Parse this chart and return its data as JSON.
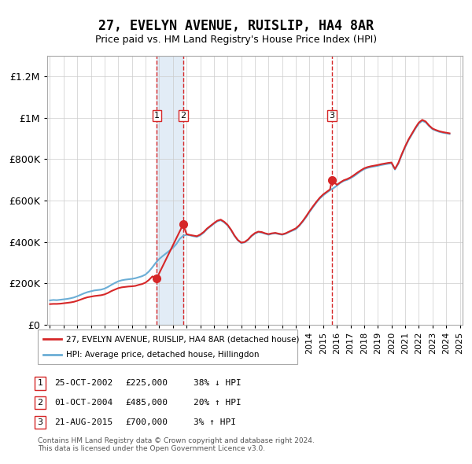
{
  "title": "27, EVELYN AVENUE, RUISLIP, HA4 8AR",
  "subtitle": "Price paid vs. HM Land Registry's House Price Index (HPI)",
  "ylabel": "",
  "ylim": [
    0,
    1300000
  ],
  "yticks": [
    0,
    200000,
    400000,
    600000,
    800000,
    1000000,
    1200000
  ],
  "ytick_labels": [
    "£0",
    "£200K",
    "£400K",
    "£600K",
    "£800K",
    "£1M",
    "£1.2M"
  ],
  "x_start_year": 1995,
  "x_end_year": 2025,
  "hpi_color": "#6baed6",
  "price_color": "#d62728",
  "transaction_color": "#d62728",
  "sale_marker_color": "#d62728",
  "band_color": "#c6dbef",
  "dashed_color": "#d62728",
  "background_color": "#ffffff",
  "grid_color": "#cccccc",
  "transactions": [
    {
      "num": 1,
      "date_str": "25-OCT-2002",
      "date_decimal": 2002.82,
      "price": 225000,
      "hpi_note": "38% ↓ HPI"
    },
    {
      "num": 2,
      "date_str": "01-OCT-2004",
      "date_decimal": 2004.75,
      "price": 485000,
      "hpi_note": "20% ↑ HPI"
    },
    {
      "num": 3,
      "date_str": "21-AUG-2015",
      "date_decimal": 2015.64,
      "price": 700000,
      "hpi_note": "3% ↑ HPI"
    }
  ],
  "legend_label_red": "27, EVELYN AVENUE, RUISLIP, HA4 8AR (detached house)",
  "legend_label_blue": "HPI: Average price, detached house, Hillingdon",
  "footer": "Contains HM Land Registry data © Crown copyright and database right 2024.\nThis data is licensed under the Open Government Licence v3.0.",
  "hpi_data": {
    "years": [
      1995.0,
      1995.25,
      1995.5,
      1995.75,
      1996.0,
      1996.25,
      1996.5,
      1996.75,
      1997.0,
      1997.25,
      1997.5,
      1997.75,
      1998.0,
      1998.25,
      1998.5,
      1998.75,
      1999.0,
      1999.25,
      1999.5,
      1999.75,
      2000.0,
      2000.25,
      2000.5,
      2000.75,
      2001.0,
      2001.25,
      2001.5,
      2001.75,
      2002.0,
      2002.25,
      2002.5,
      2002.75,
      2003.0,
      2003.25,
      2003.5,
      2003.75,
      2004.0,
      2004.25,
      2004.5,
      2004.75,
      2005.0,
      2005.25,
      2005.5,
      2005.75,
      2006.0,
      2006.25,
      2006.5,
      2006.75,
      2007.0,
      2007.25,
      2007.5,
      2007.75,
      2008.0,
      2008.25,
      2008.5,
      2008.75,
      2009.0,
      2009.25,
      2009.5,
      2009.75,
      2010.0,
      2010.25,
      2010.5,
      2010.75,
      2011.0,
      2011.25,
      2011.5,
      2011.75,
      2012.0,
      2012.25,
      2012.5,
      2012.75,
      2013.0,
      2013.25,
      2013.5,
      2013.75,
      2014.0,
      2014.25,
      2014.5,
      2014.75,
      2015.0,
      2015.25,
      2015.5,
      2015.75,
      2016.0,
      2016.25,
      2016.5,
      2016.75,
      2017.0,
      2017.25,
      2017.5,
      2017.75,
      2018.0,
      2018.25,
      2018.5,
      2018.75,
      2019.0,
      2019.25,
      2019.5,
      2019.75,
      2020.0,
      2020.25,
      2020.5,
      2020.75,
      2021.0,
      2021.25,
      2021.5,
      2021.75,
      2022.0,
      2022.25,
      2022.5,
      2022.75,
      2023.0,
      2023.25,
      2023.5,
      2023.75,
      2024.0,
      2024.25
    ],
    "values": [
      118000,
      120000,
      119000,
      121000,
      123000,
      125000,
      128000,
      132000,
      138000,
      145000,
      152000,
      158000,
      162000,
      166000,
      168000,
      170000,
      175000,
      183000,
      193000,
      202000,
      210000,
      215000,
      218000,
      220000,
      222000,
      225000,
      230000,
      235000,
      243000,
      258000,
      278000,
      300000,
      318000,
      332000,
      345000,
      358000,
      372000,
      390000,
      415000,
      430000,
      435000,
      432000,
      428000,
      425000,
      432000,
      445000,
      462000,
      475000,
      488000,
      500000,
      505000,
      495000,
      480000,
      458000,
      430000,
      408000,
      395000,
      398000,
      410000,
      428000,
      440000,
      448000,
      445000,
      440000,
      435000,
      440000,
      442000,
      438000,
      435000,
      440000,
      448000,
      455000,
      462000,
      478000,
      498000,
      520000,
      545000,
      568000,
      590000,
      610000,
      625000,
      638000,
      650000,
      660000,
      672000,
      685000,
      695000,
      700000,
      708000,
      718000,
      730000,
      742000,
      752000,
      758000,
      762000,
      765000,
      768000,
      772000,
      775000,
      778000,
      780000,
      750000,
      778000,
      820000,
      858000,
      892000,
      920000,
      948000,
      972000,
      985000,
      978000,
      960000,
      945000,
      938000,
      932000,
      928000,
      925000,
      922000
    ]
  },
  "price_line_data": {
    "years": [
      1995.0,
      1995.25,
      1995.5,
      1995.75,
      1996.0,
      1996.25,
      1996.5,
      1996.75,
      1997.0,
      1997.25,
      1997.5,
      1997.75,
      1998.0,
      1998.25,
      1998.5,
      1998.75,
      1999.0,
      1999.25,
      1999.5,
      1999.75,
      2000.0,
      2000.25,
      2000.5,
      2000.75,
      2001.0,
      2001.25,
      2001.5,
      2001.75,
      2002.0,
      2002.25,
      2002.5,
      2002.75,
      2002.82,
      2004.75,
      2004.75,
      2005.0,
      2005.25,
      2005.5,
      2005.75,
      2006.0,
      2006.25,
      2006.5,
      2006.75,
      2007.0,
      2007.25,
      2007.5,
      2007.75,
      2008.0,
      2008.25,
      2008.5,
      2008.75,
      2009.0,
      2009.25,
      2009.5,
      2009.75,
      2010.0,
      2010.25,
      2010.5,
      2010.75,
      2011.0,
      2011.25,
      2011.5,
      2011.75,
      2012.0,
      2012.25,
      2012.5,
      2012.75,
      2013.0,
      2013.25,
      2013.5,
      2013.75,
      2014.0,
      2014.25,
      2014.5,
      2014.75,
      2015.0,
      2015.25,
      2015.5,
      2015.64,
      2015.64,
      2016.0,
      2016.25,
      2016.5,
      2016.75,
      2017.0,
      2017.25,
      2017.5,
      2017.75,
      2018.0,
      2018.25,
      2018.5,
      2018.75,
      2019.0,
      2019.25,
      2019.5,
      2019.75,
      2020.0,
      2020.25,
      2020.5,
      2020.75,
      2021.0,
      2021.25,
      2021.5,
      2021.75,
      2022.0,
      2022.25,
      2022.5,
      2022.75,
      2023.0,
      2023.25,
      2023.5,
      2023.75,
      2024.0,
      2024.25
    ],
    "values": [
      100000,
      101000,
      101000,
      102000,
      104000,
      106000,
      108000,
      111000,
      116000,
      122000,
      128000,
      133000,
      136000,
      139000,
      141000,
      143000,
      147000,
      154000,
      163000,
      170000,
      177000,
      181000,
      183000,
      185000,
      186000,
      188000,
      193000,
      197000,
      204000,
      217000,
      234000,
      220000,
      225000,
      485000,
      485000,
      438000,
      434000,
      431000,
      428000,
      436000,
      448000,
      465000,
      478000,
      491000,
      503000,
      508000,
      498000,
      483000,
      460000,
      432000,
      410000,
      397000,
      400000,
      412000,
      430000,
      443000,
      450000,
      448000,
      442000,
      438000,
      442000,
      444000,
      440000,
      437000,
      442000,
      450000,
      458000,
      466000,
      481000,
      501000,
      524000,
      549000,
      572000,
      594000,
      614000,
      630000,
      642000,
      654000,
      700000,
      700000,
      676000,
      688000,
      698000,
      704000,
      712000,
      723000,
      735000,
      746000,
      756000,
      762000,
      766000,
      769000,
      772000,
      776000,
      779000,
      782000,
      784000,
      753000,
      782000,
      824000,
      862000,
      896000,
      924000,
      952000,
      977000,
      990000,
      982000,
      963000,
      948000,
      941000,
      935000,
      931000,
      928000,
      925000
    ]
  }
}
